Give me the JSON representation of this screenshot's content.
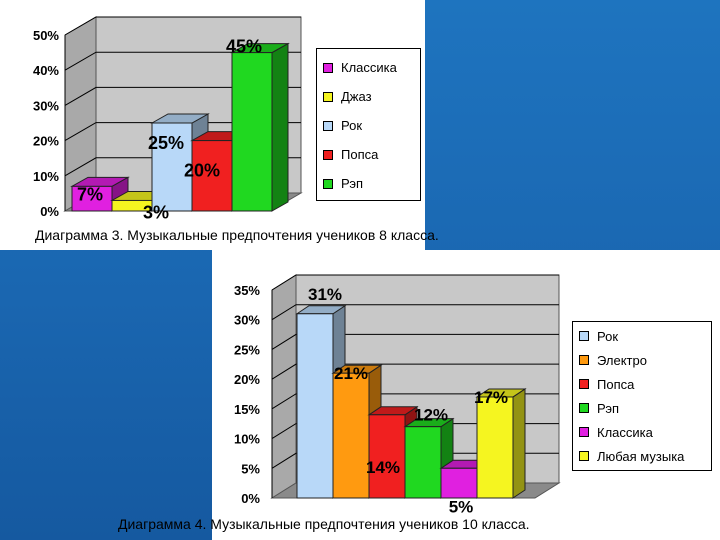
{
  "chart_data": [
    {
      "type": "bar",
      "categories": [
        "Классика",
        "Джаз",
        "Рок",
        "Попса",
        "Рэп"
      ],
      "values": [
        7,
        3,
        25,
        20,
        45
      ],
      "value_labels": [
        "7%",
        "3%",
        "25%",
        "20%",
        "45%"
      ],
      "colors": [
        "#e020e0",
        "#f5f520",
        "#b8d8f8",
        "#f02020",
        "#20d820"
      ],
      "legend": [
        "Классика",
        "Джаз",
        "Рок",
        "Попса",
        "Рэп"
      ],
      "legend_position": "right",
      "ylim": [
        0,
        50
      ],
      "yticks": [
        "0%",
        "10%",
        "20%",
        "30%",
        "40%",
        "50%"
      ],
      "grid": true,
      "caption": "Диаграмма 3. Музыкальные предпочтения учеников 8 класса."
    },
    {
      "type": "bar",
      "categories": [
        "Рок",
        "Электро",
        "Попса",
        "Рэп",
        "Классика",
        "Любая музыка"
      ],
      "values": [
        31,
        21,
        14,
        12,
        5,
        17
      ],
      "value_labels": [
        "31%",
        "21%",
        "14%",
        "12%",
        "5%",
        "17%"
      ],
      "colors": [
        "#b8d8f8",
        "#ff9a10",
        "#f02020",
        "#20d820",
        "#e020e0",
        "#f5f520"
      ],
      "legend": [
        "Рок",
        "Электро",
        "Попса",
        "Рэп",
        "Классика",
        "Любая музыка"
      ],
      "legend_position": "right",
      "ylim": [
        0,
        35
      ],
      "yticks": [
        "0%",
        "5%",
        "10%",
        "15%",
        "20%",
        "25%",
        "30%",
        "35%"
      ],
      "grid": true,
      "caption": "Диаграмма 4. Музыкальные предпочтения учеников 10 класса."
    }
  ]
}
